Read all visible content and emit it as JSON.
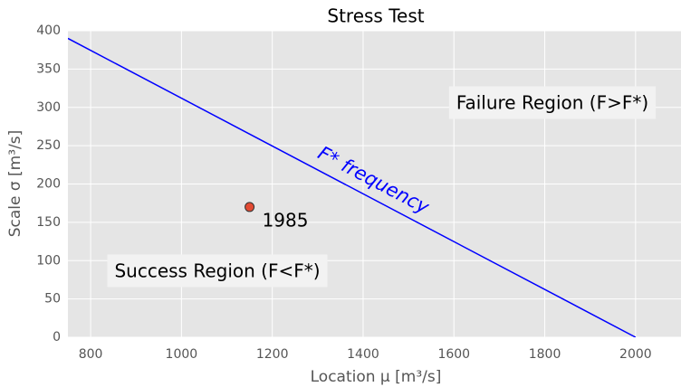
{
  "chart_data": {
    "type": "line",
    "title": "Stress Test",
    "x_label": "Location μ [m³/s]",
    "y_label": "Scale   σ [m³/s]",
    "xlim": [
      750,
      2100
    ],
    "ylim": [
      0,
      400
    ],
    "xticks": [
      800,
      1000,
      1200,
      1400,
      1600,
      1800,
      2000
    ],
    "yticks": [
      0,
      50,
      100,
      150,
      200,
      250,
      300,
      350,
      400
    ],
    "grid": true,
    "background": "#e5e5e5",
    "series": [
      {
        "x": [
          750,
          2000
        ],
        "values": [
          390,
          0
        ],
        "color": "#0000ff"
      }
    ],
    "points": [
      {
        "x": 1150,
        "y": 170,
        "label": "1985",
        "color": "#e24a33"
      }
    ],
    "annotations": {
      "line": "F* frequency",
      "failure": "Failure Region (F>F*)",
      "success": "Success Region (F<F*)"
    }
  }
}
